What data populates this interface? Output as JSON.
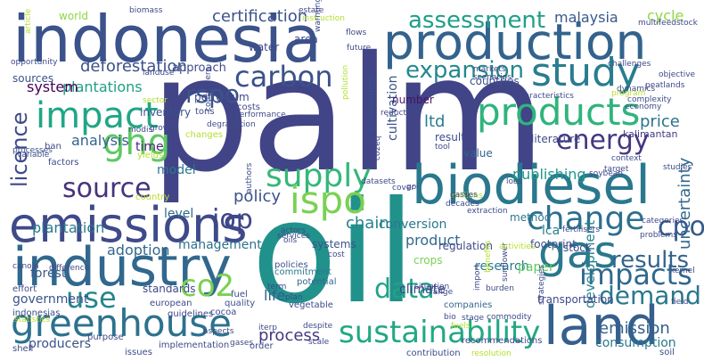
{
  "words": [
    {
      "text": "palm",
      "color": "#414487"
    },
    {
      "text": "oil",
      "color": "#21918c"
    },
    {
      "text": "indonesia",
      "color": "#3b528b"
    },
    {
      "text": "production",
      "color": "#33638d"
    },
    {
      "text": "biodiesel",
      "color": "#2a788e"
    },
    {
      "text": "emissions",
      "color": "#3e4a89"
    },
    {
      "text": "industry",
      "color": "#31688e"
    },
    {
      "text": "greenhouse",
      "color": "#2c728e"
    },
    {
      "text": "land",
      "color": "#355f8d"
    },
    {
      "text": "products",
      "color": "#2fb47c"
    },
    {
      "text": "impact",
      "color": "#21a685"
    },
    {
      "text": "study",
      "color": "#287d8e"
    },
    {
      "text": "gas",
      "color": "#2a788e"
    },
    {
      "text": "sustainability",
      "color": "#22a884"
    },
    {
      "text": "carbon",
      "color": "#3b528b"
    },
    {
      "text": "ghg",
      "color": "#5ec962"
    },
    {
      "text": "supply",
      "color": "#35b779"
    },
    {
      "text": "ispo",
      "color": "#7ad151"
    },
    {
      "text": "change",
      "color": "#2d708e"
    },
    {
      "text": "cpo",
      "color": "#38598c"
    },
    {
      "text": "impacts",
      "color": "#31688e"
    },
    {
      "text": "expansion",
      "color": "#23888e"
    },
    {
      "text": "rspo",
      "color": "#39568c"
    },
    {
      "text": "co2",
      "color": "#7ad151"
    },
    {
      "text": "source",
      "color": "#46337e"
    },
    {
      "text": "energy",
      "color": "#453781"
    },
    {
      "text": "assessment",
      "color": "#1f9e89"
    },
    {
      "text": "use",
      "color": "#25858e"
    },
    {
      "text": "demand",
      "color": "#2a788e"
    },
    {
      "text": "results",
      "color": "#33638d"
    },
    {
      "text": "data",
      "color": "#20a386"
    },
    {
      "text": "iop",
      "color": "#404688"
    },
    {
      "text": "licence",
      "color": "#3e4989"
    },
    {
      "text": "uncertainty",
      "color": "#31688e"
    },
    {
      "text": "certification",
      "color": "#3b528b"
    },
    {
      "text": "deforestation",
      "color": "#3b528b"
    },
    {
      "text": "plantations",
      "color": "#1f9e89"
    },
    {
      "text": "emission",
      "color": "#34618d"
    },
    {
      "text": "publishing",
      "color": "#1f988b"
    },
    {
      "text": "process",
      "color": "#453882"
    },
    {
      "text": "product",
      "color": "#31688e"
    },
    {
      "text": "development",
      "color": "#26828e"
    },
    {
      "text": "plantation",
      "color": "#2a788e"
    },
    {
      "text": "malaysia",
      "color": "#38588c"
    },
    {
      "text": "cycle",
      "color": "#8fd744"
    },
    {
      "text": "policy",
      "color": "#3b528b"
    },
    {
      "text": "price",
      "color": "#2c728e"
    },
    {
      "text": "analysis",
      "color": "#33638d"
    },
    {
      "text": "system",
      "color": "#440154"
    },
    {
      "text": "chain",
      "color": "#26828e"
    },
    {
      "text": "conversion",
      "color": "#2a788e"
    },
    {
      "text": "climate",
      "color": "#404688"
    },
    {
      "text": "life",
      "color": "#365c8d"
    },
    {
      "text": "management",
      "color": "#2c728e"
    },
    {
      "text": "adoption",
      "color": "#31688e"
    },
    {
      "text": "forest",
      "color": "#38598c"
    },
    {
      "text": "ltd",
      "color": "#287d8e"
    },
    {
      "text": "cultivation",
      "color": "#3b528b"
    },
    {
      "text": "time",
      "color": "#482878"
    },
    {
      "text": "model",
      "color": "#2a788e"
    },
    {
      "text": "lca",
      "color": "#26828e"
    },
    {
      "text": "level",
      "color": "#31688e"
    },
    {
      "text": "approach",
      "color": "#3e4a89"
    },
    {
      "text": "consumption",
      "color": "#2a788e"
    },
    {
      "text": "research",
      "color": "#2a788e"
    },
    {
      "text": "paper",
      "color": "#5ec962"
    },
    {
      "text": "government",
      "color": "#3b528b"
    },
    {
      "text": "producers",
      "color": "#3b528b"
    },
    {
      "text": "world",
      "color": "#8fd744"
    },
    {
      "text": "soil",
      "color": "#3b528b"
    },
    {
      "text": "kalimantan",
      "color": "#443983"
    },
    {
      "text": "countries",
      "color": "#3b528b"
    },
    {
      "text": "literature",
      "color": "#3e4a89"
    },
    {
      "text": "number",
      "color": "#471365"
    },
    {
      "text": "result",
      "color": "#3e4a89"
    },
    {
      "text": "value",
      "color": "#33638d"
    },
    {
      "text": "method",
      "color": "#2a788e"
    },
    {
      "text": "regulation",
      "color": "#3e4a89"
    },
    {
      "text": "footprint",
      "color": "#3b528b"
    },
    {
      "text": "stock",
      "color": "#3e4a89"
    },
    {
      "text": "systems",
      "color": "#3b528b"
    },
    {
      "text": "petroleum",
      "color": "#3e4a89"
    },
    {
      "text": "inventory",
      "color": "#3b528b"
    },
    {
      "text": "sources",
      "color": "#3b528b"
    },
    {
      "text": "crops",
      "color": "#7ad151"
    },
    {
      "text": "transportation",
      "color": "#3e4a89"
    },
    {
      "text": "standards",
      "color": "#3e4a89"
    },
    {
      "text": "quality",
      "color": "#3b528b"
    },
    {
      "text": "policies",
      "color": "#3b528b"
    },
    {
      "text": "commitment",
      "color": "#2a788e"
    },
    {
      "text": "potential",
      "color": "#31688e"
    },
    {
      "text": "vegetable",
      "color": "#3e4a89"
    },
    {
      "text": "companies",
      "color": "#31688e"
    },
    {
      "text": "indonesias",
      "color": "#3e4a89"
    },
    {
      "text": "european",
      "color": "#3e4a89"
    },
    {
      "text": "cocoa",
      "color": "#3e4a89"
    },
    {
      "text": "fuel",
      "color": "#3e4a89"
    },
    {
      "text": "issues",
      "color": "#3e4a89"
    },
    {
      "text": "implementation",
      "color": "#3e4a89"
    },
    {
      "text": "recommendations",
      "color": "#3e4a89"
    },
    {
      "text": "contribution",
      "color": "#3e4a89"
    },
    {
      "text": "order",
      "color": "#3e4a89"
    },
    {
      "text": "effort",
      "color": "#3e4a89"
    },
    {
      "text": "shell",
      "color": "#3e4a89"
    },
    {
      "text": "purpose",
      "color": "#3e4a89"
    },
    {
      "text": "guidelines",
      "color": "#3e4a89"
    },
    {
      "text": "statistics",
      "color": "#b5de2b"
    },
    {
      "text": "variable",
      "color": "#3b528b"
    },
    {
      "text": "processes",
      "color": "#3b528b"
    },
    {
      "text": "ban",
      "color": "#3e4a89"
    },
    {
      "text": "factors",
      "color": "#3e4a89"
    },
    {
      "text": "yields",
      "color": "#b5de2b"
    },
    {
      "text": "country",
      "color": "#b5de2b"
    },
    {
      "text": "modis",
      "color": "#3e4a89"
    },
    {
      "text": "growth",
      "color": "#3e4a89"
    },
    {
      "text": "consumers",
      "color": "#3e4a89"
    },
    {
      "text": "tons",
      "color": "#3e4a89"
    },
    {
      "text": "performance",
      "color": "#3e4a89"
    },
    {
      "text": "costs",
      "color": "#3e4a89"
    },
    {
      "text": "changes",
      "color": "#b5de2b"
    },
    {
      "text": "environment",
      "color": "#3b528b"
    },
    {
      "text": "effect",
      "color": "#3e4a89"
    },
    {
      "text": "co2eq",
      "color": "#3e4a89"
    },
    {
      "text": "datasets",
      "color": "#3e4a89"
    },
    {
      "text": "authors",
      "color": "#3e4a89"
    },
    {
      "text": "services",
      "color": "#3e4a89"
    },
    {
      "text": "actors",
      "color": "#3e4a89"
    },
    {
      "text": "oils",
      "color": "#3e4a89"
    },
    {
      "text": "goi",
      "color": "#3e4a89"
    },
    {
      "text": "cover",
      "color": "#3e4a89"
    },
    {
      "text": "cost",
      "color": "#3e4a89"
    },
    {
      "text": "plan",
      "color": "#3e4a89"
    },
    {
      "text": "term",
      "color": "#3e4a89"
    },
    {
      "text": "iterp",
      "color": "#3e4a89"
    },
    {
      "text": "despite",
      "color": "#3e4a89"
    },
    {
      "text": "scale",
      "color": "#3e4a89"
    },
    {
      "text": "situation",
      "color": "#3e4a89"
    },
    {
      "text": "range",
      "color": "#3e4a89"
    },
    {
      "text": "commodity",
      "color": "#3e4a89"
    },
    {
      "text": "strategies",
      "color": "#3e4a89"
    },
    {
      "text": "resolution",
      "color": "#b5de2b"
    },
    {
      "text": "import",
      "color": "#3e4a89"
    },
    {
      "text": "burden",
      "color": "#3e4a89"
    },
    {
      "text": "sunflower",
      "color": "#3e4a89"
    },
    {
      "text": "field",
      "color": "#3e4a89"
    },
    {
      "text": "kernel",
      "color": "#3e4a89"
    },
    {
      "text": "problems",
      "color": "#3e4a89"
    },
    {
      "text": "categories",
      "color": "#3e4a89"
    },
    {
      "text": "fertilisers",
      "color": "#3e4a89"
    },
    {
      "text": "activities",
      "color": "#b5de2b"
    },
    {
      "text": "decades",
      "color": "#3e4a89"
    },
    {
      "text": "extraction",
      "color": "#3e4a89"
    },
    {
      "text": "millions",
      "color": "#b5de2b"
    },
    {
      "text": "gasses",
      "color": "#3e4a89"
    },
    {
      "text": "benefits",
      "color": "#b5de2b"
    },
    {
      "text": "stage",
      "color": "#3e4a89"
    },
    {
      "text": "studies",
      "color": "#3e4a89"
    },
    {
      "text": "context",
      "color": "#3e4a89"
    },
    {
      "text": "target",
      "color": "#3e4a89"
    },
    {
      "text": "soybean",
      "color": "#3e4a89"
    },
    {
      "text": "tool",
      "color": "#3e4a89"
    },
    {
      "text": "dynamics",
      "color": "#3e4a89"
    },
    {
      "text": "program",
      "color": "#b5de2b"
    },
    {
      "text": "characteristics",
      "color": "#3e4a89"
    },
    {
      "text": "economy",
      "color": "#3e4a89"
    },
    {
      "text": "complexity",
      "color": "#3e4a89"
    },
    {
      "text": "peatlands",
      "color": "#3e4a89"
    },
    {
      "text": "objective",
      "color": "#3e4a89"
    },
    {
      "text": "challenges",
      "color": "#3e4a89"
    },
    {
      "text": "multifeedstock",
      "color": "#3e4a89"
    },
    {
      "text": "scenarios",
      "color": "#3e4a89"
    },
    {
      "text": "markets",
      "color": "#3e4a89"
    },
    {
      "text": "future",
      "color": "#3e4a89"
    },
    {
      "text": "flows",
      "color": "#3e4a89"
    },
    {
      "text": "instruction",
      "color": "#b5de2b"
    },
    {
      "text": "estate",
      "color": "#3e4a89"
    },
    {
      "text": "warming",
      "color": "#3e4a89"
    },
    {
      "text": "biomass",
      "color": "#3e4a89"
    },
    {
      "text": "article",
      "color": "#b5de2b"
    },
    {
      "text": "opportunity",
      "color": "#3e4a89"
    },
    {
      "text": "landuse",
      "color": "#3e4a89"
    },
    {
      "text": "sector",
      "color": "#b5de2b"
    },
    {
      "text": "degradation",
      "color": "#3e4a89"
    },
    {
      "text": "pollution",
      "color": "#b5de2b"
    },
    {
      "text": "reduction",
      "color": "#3e4a89"
    },
    {
      "text": "water",
      "color": "#3e4a89"
    },
    {
      "text": "area",
      "color": "#3e4a89"
    },
    {
      "text": "canola",
      "color": "#3e4a89"
    },
    {
      "text": "difference",
      "color": "#3e4a89"
    },
    {
      "text": "aspects",
      "color": "#3e4a89"
    },
    {
      "text": "gases",
      "color": "#3e4a89"
    },
    {
      "text": "bio",
      "color": "#3e4a89"
    },
    {
      "text": "fuels",
      "color": "#b5de2b"
    },
    {
      "text": "loss",
      "color": "#3e4a89"
    }
  ]
}
